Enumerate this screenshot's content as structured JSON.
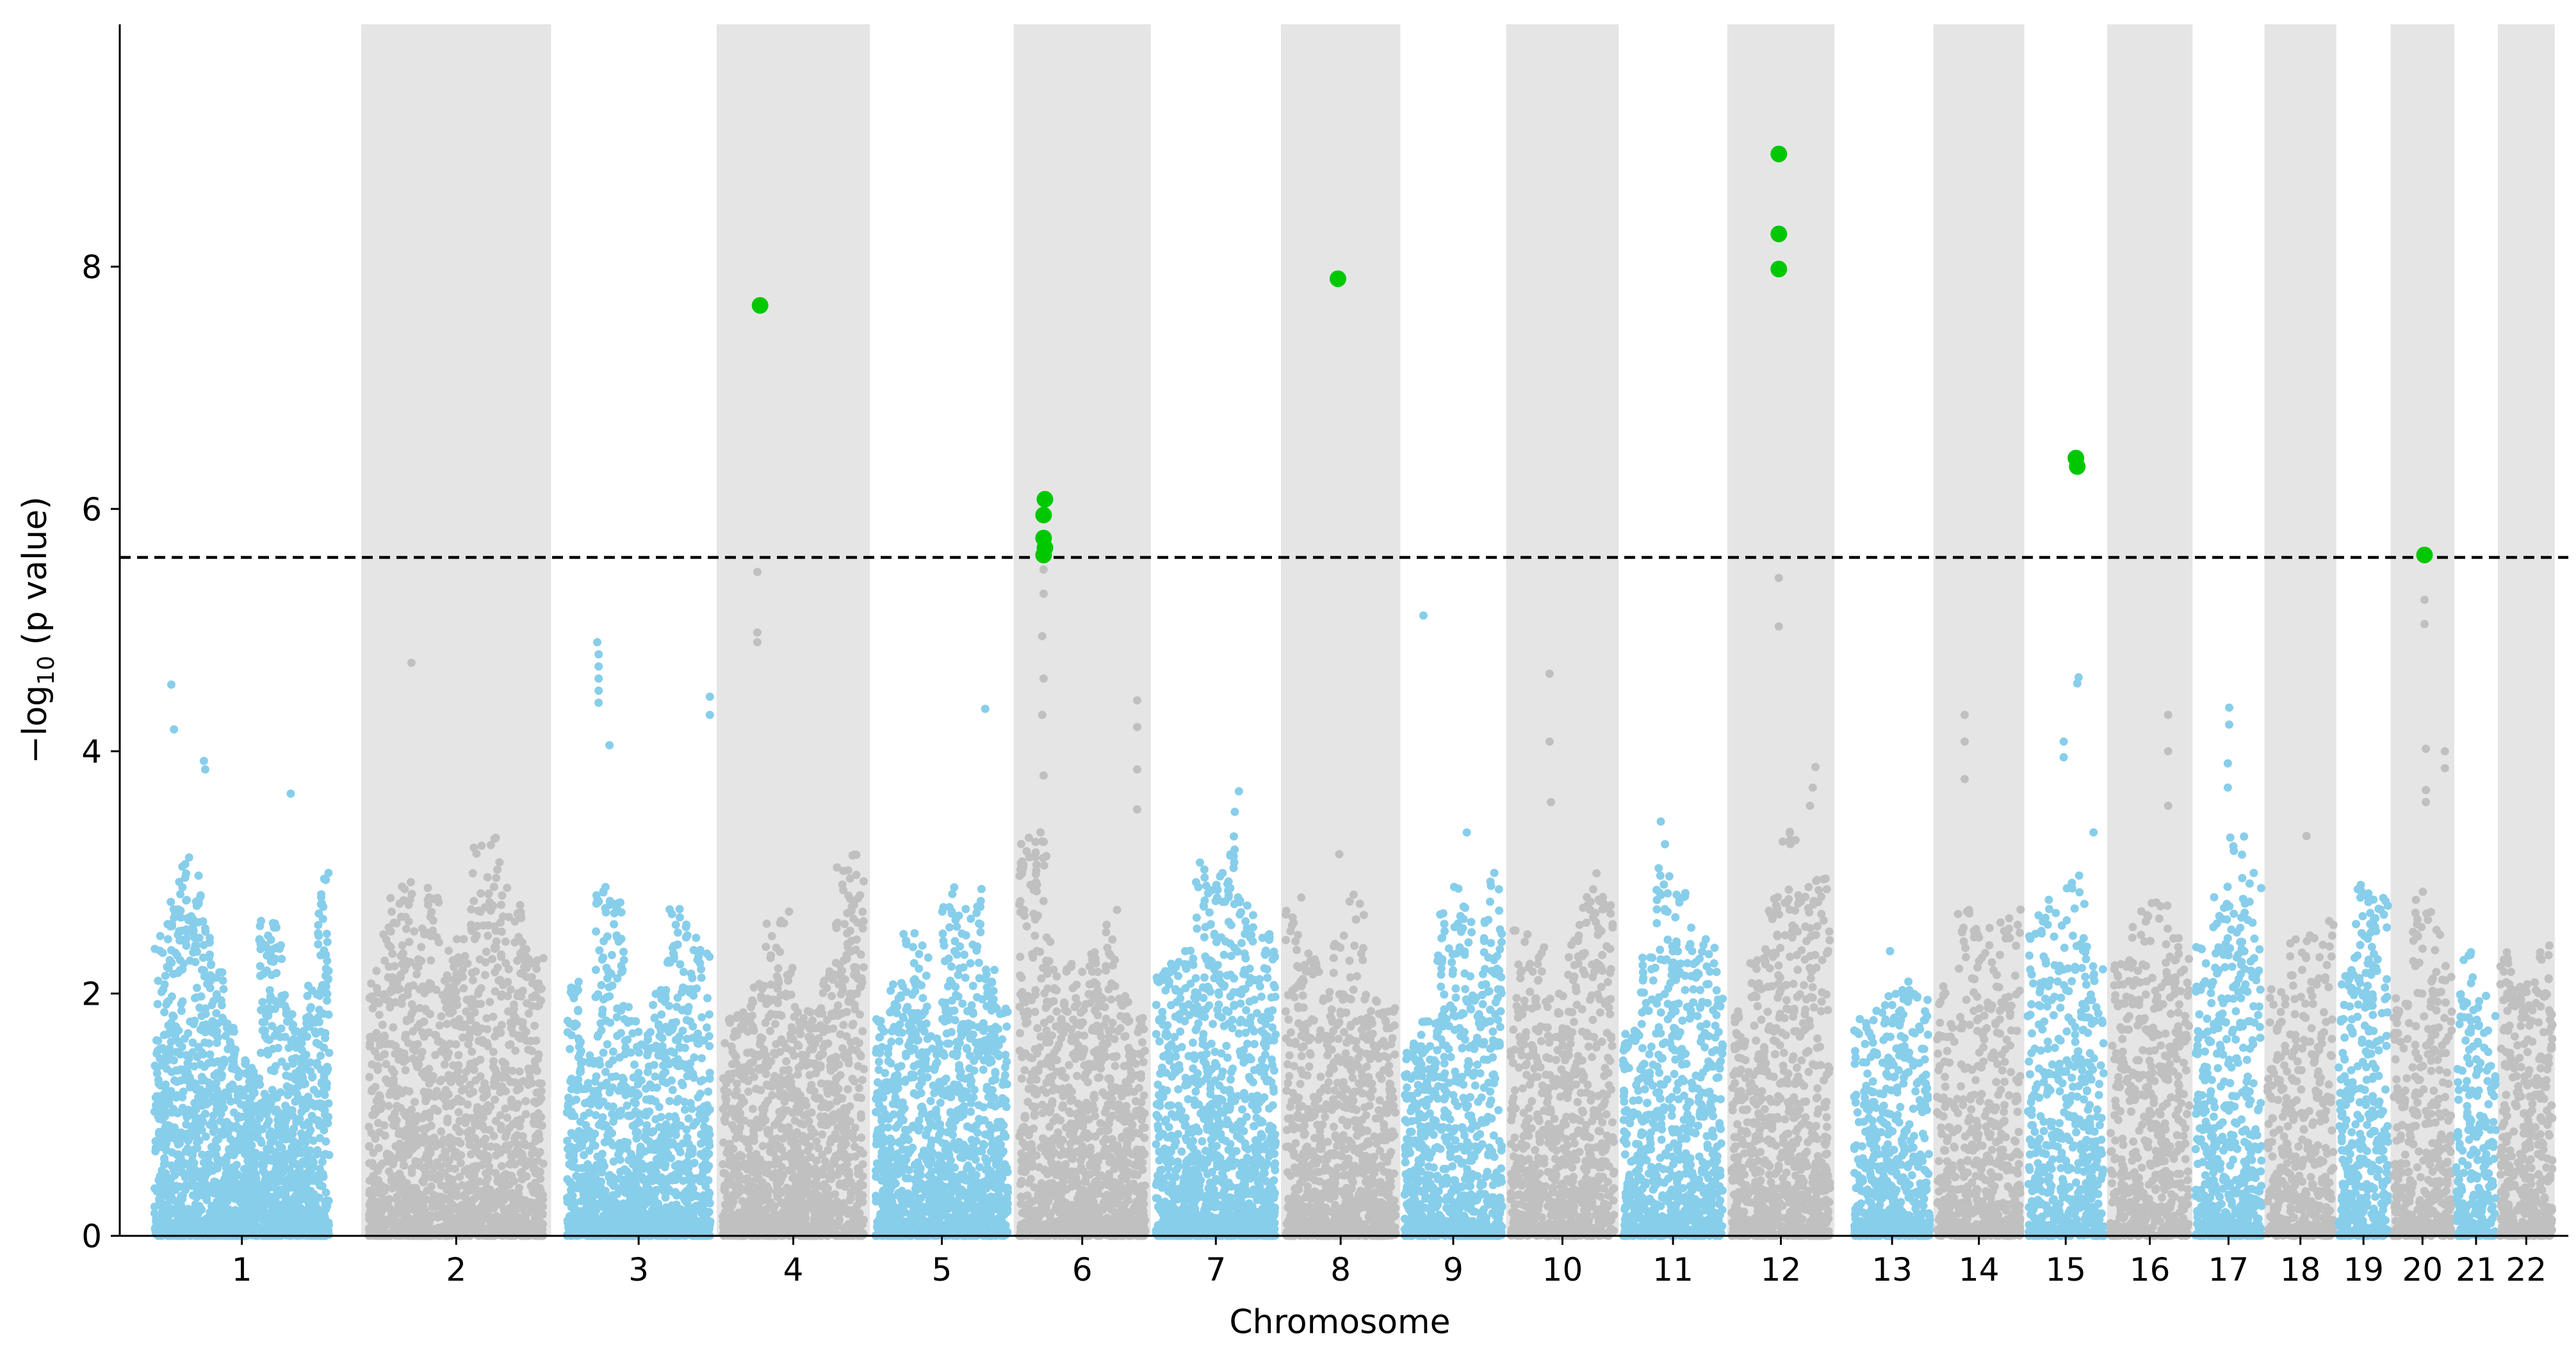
{
  "chart_data": {
    "type": "scatter",
    "subtype": "manhattan",
    "title": "",
    "xlabel": "Chromosome",
    "ylabel_main": "−log",
    "ylabel_sub": "10",
    "ylabel_rest": " (p value)",
    "ylim": [
      0,
      10
    ],
    "yticks": [
      "0",
      "2",
      "4",
      "6",
      "8"
    ],
    "threshold": 5.6,
    "chromosomes": [
      {
        "label": "1",
        "start": 0,
        "end": 1.4
      },
      {
        "label": "2",
        "start": 1.58,
        "end": 2.98
      },
      {
        "label": "3",
        "start": 3.05,
        "end": 4.2
      },
      {
        "label": "4",
        "start": 4.2,
        "end": 5.33
      },
      {
        "label": "5",
        "start": 5.33,
        "end": 6.39
      },
      {
        "label": "6",
        "start": 6.39,
        "end": 7.4
      },
      {
        "label": "7",
        "start": 7.4,
        "end": 8.36
      },
      {
        "label": "8",
        "start": 8.36,
        "end": 9.24
      },
      {
        "label": "9",
        "start": 9.24,
        "end": 10.02
      },
      {
        "label": "10",
        "start": 10.02,
        "end": 10.85
      },
      {
        "label": "11",
        "start": 10.85,
        "end": 11.65
      },
      {
        "label": "12",
        "start": 11.65,
        "end": 12.44
      },
      {
        "label": "13",
        "start": 12.56,
        "end": 13.17
      },
      {
        "label": "14",
        "start": 13.17,
        "end": 13.84
      },
      {
        "label": "15",
        "start": 13.84,
        "end": 14.45
      },
      {
        "label": "16",
        "start": 14.45,
        "end": 15.08
      },
      {
        "label": "17",
        "start": 15.08,
        "end": 15.61
      },
      {
        "label": "18",
        "start": 15.61,
        "end": 16.14
      },
      {
        "label": "19",
        "start": 16.14,
        "end": 16.54
      },
      {
        "label": "20",
        "start": 16.54,
        "end": 17.01
      },
      {
        "label": "21",
        "start": 17.01,
        "end": 17.33
      },
      {
        "label": "22",
        "start": 17.33,
        "end": 17.75
      }
    ],
    "series": [
      {
        "name": "odd chromosomes",
        "color": "#87ceeb"
      },
      {
        "name": "even chromosomes",
        "color": "#c0c0c0"
      },
      {
        "name": "significant",
        "color": "#00c800"
      }
    ],
    "significant_points": [
      {
        "chr": "4",
        "x": 4.52,
        "y": 7.68
      },
      {
        "chr": "6",
        "x": 6.62,
        "y": 6.08
      },
      {
        "chr": "6",
        "x": 6.61,
        "y": 5.95
      },
      {
        "chr": "6",
        "x": 6.61,
        "y": 5.76
      },
      {
        "chr": "6",
        "x": 6.62,
        "y": 5.68
      },
      {
        "chr": "6",
        "x": 6.61,
        "y": 5.62
      },
      {
        "chr": "8",
        "x": 8.78,
        "y": 7.9
      },
      {
        "chr": "12",
        "x": 12.03,
        "y": 8.93
      },
      {
        "chr": "12",
        "x": 12.03,
        "y": 8.27
      },
      {
        "chr": "12",
        "x": 12.03,
        "y": 7.98
      },
      {
        "chr": "15",
        "x": 14.22,
        "y": 6.42
      },
      {
        "chr": "15",
        "x": 14.23,
        "y": 6.35
      },
      {
        "chr": "20",
        "x": 16.79,
        "y": 5.62
      }
    ],
    "notable_points": [
      {
        "chr": "1",
        "x": 0.18,
        "y": 4.55
      },
      {
        "chr": "1",
        "x": 0.2,
        "y": 4.18
      },
      {
        "chr": "1",
        "x": 0.42,
        "y": 3.92
      },
      {
        "chr": "1",
        "x": 0.43,
        "y": 3.85
      },
      {
        "chr": "1",
        "x": 1.06,
        "y": 3.65
      },
      {
        "chr": "2",
        "x": 1.95,
        "y": 4.73
      },
      {
        "chr": "3",
        "x": 3.32,
        "y": 4.9
      },
      {
        "chr": "3",
        "x": 3.33,
        "y": 4.8
      },
      {
        "chr": "3",
        "x": 3.33,
        "y": 4.7
      },
      {
        "chr": "3",
        "x": 3.33,
        "y": 4.6
      },
      {
        "chr": "3",
        "x": 3.33,
        "y": 4.5
      },
      {
        "chr": "3",
        "x": 3.33,
        "y": 4.4
      },
      {
        "chr": "3",
        "x": 3.41,
        "y": 4.05
      },
      {
        "chr": "3",
        "x": 4.15,
        "y": 4.45
      },
      {
        "chr": "3",
        "x": 4.15,
        "y": 4.3
      },
      {
        "chr": "4",
        "x": 4.5,
        "y": 5.48
      },
      {
        "chr": "4",
        "x": 4.5,
        "y": 4.98
      },
      {
        "chr": "4",
        "x": 4.5,
        "y": 4.9
      },
      {
        "chr": "5",
        "x": 6.18,
        "y": 4.35
      },
      {
        "chr": "6",
        "x": 6.61,
        "y": 5.5
      },
      {
        "chr": "6",
        "x": 6.61,
        "y": 5.3
      },
      {
        "chr": "6",
        "x": 6.6,
        "y": 4.95
      },
      {
        "chr": "6",
        "x": 6.61,
        "y": 4.6
      },
      {
        "chr": "6",
        "x": 6.6,
        "y": 4.3
      },
      {
        "chr": "6",
        "x": 6.61,
        "y": 3.8
      },
      {
        "chr": "6",
        "x": 7.3,
        "y": 4.42
      },
      {
        "chr": "6",
        "x": 7.3,
        "y": 4.2
      },
      {
        "chr": "6",
        "x": 7.3,
        "y": 3.85
      },
      {
        "chr": "6",
        "x": 7.3,
        "y": 3.52
      },
      {
        "chr": "7",
        "x": 8.05,
        "y": 3.67
      },
      {
        "chr": "7",
        "x": 8.02,
        "y": 3.5
      },
      {
        "chr": "8",
        "x": 8.79,
        "y": 3.15
      },
      {
        "chr": "9",
        "x": 9.41,
        "y": 5.12
      },
      {
        "chr": "9",
        "x": 9.73,
        "y": 3.33
      },
      {
        "chr": "10",
        "x": 10.34,
        "y": 4.64
      },
      {
        "chr": "10",
        "x": 10.34,
        "y": 4.08
      },
      {
        "chr": "10",
        "x": 10.35,
        "y": 3.58
      },
      {
        "chr": "11",
        "x": 11.16,
        "y": 3.42
      },
      {
        "chr": "12",
        "x": 12.03,
        "y": 5.43
      },
      {
        "chr": "12",
        "x": 12.03,
        "y": 5.03
      },
      {
        "chr": "12",
        "x": 12.3,
        "y": 3.87
      },
      {
        "chr": "12",
        "x": 12.28,
        "y": 3.7
      },
      {
        "chr": "12",
        "x": 12.26,
        "y": 3.55
      },
      {
        "chr": "13",
        "x": 12.85,
        "y": 2.35
      },
      {
        "chr": "14",
        "x": 13.4,
        "y": 4.3
      },
      {
        "chr": "14",
        "x": 13.4,
        "y": 4.08
      },
      {
        "chr": "14",
        "x": 13.4,
        "y": 3.77
      },
      {
        "chr": "15",
        "x": 14.24,
        "y": 4.61
      },
      {
        "chr": "15",
        "x": 14.23,
        "y": 4.56
      },
      {
        "chr": "15",
        "x": 14.13,
        "y": 4.08
      },
      {
        "chr": "15",
        "x": 14.13,
        "y": 3.95
      },
      {
        "chr": "15",
        "x": 14.35,
        "y": 3.33
      },
      {
        "chr": "16",
        "x": 14.9,
        "y": 4.3
      },
      {
        "chr": "16",
        "x": 14.9,
        "y": 4.0
      },
      {
        "chr": "16",
        "x": 14.9,
        "y": 3.55
      },
      {
        "chr": "17",
        "x": 15.35,
        "y": 4.36
      },
      {
        "chr": "17",
        "x": 15.35,
        "y": 4.22
      },
      {
        "chr": "17",
        "x": 15.34,
        "y": 3.9
      },
      {
        "chr": "17",
        "x": 15.34,
        "y": 3.7
      },
      {
        "chr": "18",
        "x": 15.92,
        "y": 3.3
      },
      {
        "chr": "20",
        "x": 16.79,
        "y": 5.25
      },
      {
        "chr": "20",
        "x": 16.79,
        "y": 5.05
      },
      {
        "chr": "20",
        "x": 16.8,
        "y": 4.02
      },
      {
        "chr": "20",
        "x": 16.94,
        "y": 4.0
      },
      {
        "chr": "20",
        "x": 16.94,
        "y": 3.86
      },
      {
        "chr": "20",
        "x": 16.8,
        "y": 3.68
      },
      {
        "chr": "20",
        "x": 16.8,
        "y": 3.58
      }
    ],
    "column_tops": [
      2.5,
      2.8,
      3.2,
      3.0,
      2.6,
      2.2,
      1.8,
      1.5,
      1.4,
      2.6,
      2.7,
      2.0,
      1.7,
      2.1,
      3.0,
      2.2,
      2.8,
      3.0,
      2.6,
      2.9,
      2.4,
      2.5,
      3.3,
      3.4,
      2.9,
      2.8,
      2.3,
      2.1,
      1.5,
      2.9,
      2.8,
      1.9,
      1.7,
      2.1,
      2.7,
      2.6,
      2.5,
      1.8,
      1.9,
      2.2,
      2.6,
      2.7,
      1.9,
      1.9,
      2.2,
      3.1,
      3.2,
      1.8,
      2.1,
      2.5,
      2.4,
      1.7,
      2.9,
      2.7,
      2.9,
      2.2,
      1.9,
      3.3,
      3.4,
      2.5,
      2.3,
      2.2,
      2.4,
      2.7,
      2.0,
      1.8,
      2.2,
      2.3,
      2.4,
      3.1,
      3.0,
      3.3,
      2.8,
      2.7,
      2.5,
      2.8,
      2.4,
      2.2,
      2.5,
      2.9,
      2.0,
      1.9,
      1.6,
      1.8,
      2.7,
      2.9,
      2.6,
      3.0,
      2.6,
      2.4,
      2.0,
      2.6,
      3.0,
      2.8,
      1.7,
      2.4,
      3.3,
      2.9,
      2.7,
      2.4,
      1.9,
      2.3,
      2.8,
      3.4,
      2.9,
      3.0,
      1.8,
      2.0,
      2.1,
      2.0,
      2.1,
      2.7,
      2.6,
      2.7,
      2.8,
      2.8,
      3.0,
      2.4,
      2.3,
      2.7,
      2.8,
      2.5,
      2.4,
      2.9,
      3.3,
      3.0,
      2.1,
      2.5,
      2.6,
      2.3,
      2.9,
      2.8,
      2.0,
      2.9,
      2.6,
      2.4,
      2.0,
      2.4,
      2.1,
      2.4
    ]
  }
}
